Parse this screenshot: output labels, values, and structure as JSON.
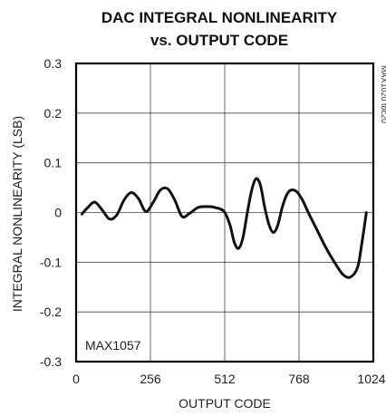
{
  "chart_data": {
    "type": "line",
    "title": [
      "DAC INTEGRAL NONLINEARITY",
      "vs. OUTPUT CODE"
    ],
    "xlabel": "OUTPUT CODE",
    "ylabel": "INTEGRAL NONLINEARITY (LSB)",
    "xlim": [
      0,
      1024
    ],
    "ylim": [
      -0.3,
      0.3
    ],
    "x_ticks": [
      0,
      256,
      512,
      768,
      1024
    ],
    "x_tick_labels": [
      "0",
      "256",
      "512",
      "768",
      "1024"
    ],
    "y_ticks": [
      0.3,
      0.2,
      0.1,
      0,
      -0.1,
      -0.2,
      -0.3
    ],
    "y_tick_labels": [
      "0.3",
      "0.2",
      "0.1",
      "0",
      "-0.1",
      "-0.2",
      "-0.3"
    ],
    "grid": true,
    "annotations": {
      "part_number": "MAX1057",
      "figure_id": "MAX1020 toc20"
    },
    "series": [
      {
        "x": [
          20,
          40,
          64,
          90,
          115,
          140,
          165,
          190,
          215,
          240,
          265,
          290,
          315,
          340,
          365,
          390,
          420,
          450,
          480,
          510,
          530,
          545,
          560,
          575,
          590,
          605,
          620,
          635,
          650,
          665,
          680,
          695,
          710,
          725,
          740,
          760,
          780,
          800,
          830,
          860,
          890,
          920,
          945,
          970,
          985,
          1000
        ],
        "y": [
          -0.003,
          0.01,
          0.021,
          0.005,
          -0.013,
          -0.005,
          0.025,
          0.04,
          0.028,
          0.002,
          0.02,
          0.045,
          0.048,
          0.025,
          -0.008,
          -0.002,
          0.01,
          0.012,
          0.01,
          0.002,
          -0.025,
          -0.06,
          -0.072,
          -0.05,
          0.0,
          0.045,
          0.068,
          0.055,
          0.01,
          -0.025,
          -0.04,
          -0.025,
          0.01,
          0.035,
          0.045,
          0.042,
          0.025,
          0.0,
          -0.035,
          -0.07,
          -0.1,
          -0.125,
          -0.13,
          -0.11,
          -0.06,
          0.0
        ]
      }
    ]
  }
}
